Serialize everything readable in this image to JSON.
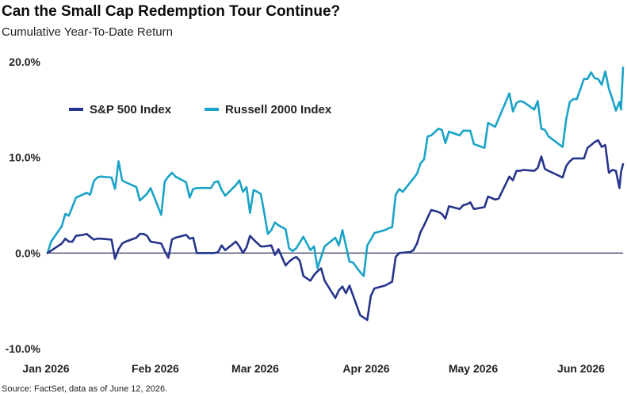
{
  "chart_data": {
    "type": "line",
    "title": "Can the Small Cap Redemption Tour Continue?",
    "subtitle": "Cumulative Year-To-Date Return",
    "source": "Source: FactSet, data as of June 12, 2026.",
    "y_unit": "%",
    "ylim": [
      -10,
      20
    ],
    "y_ticks": [
      {
        "value": -10,
        "label": "-10.0%"
      },
      {
        "value": 0,
        "label": "0.0%"
      },
      {
        "value": 10,
        "label": "10.0%"
      },
      {
        "value": 20,
        "label": "20.0%"
      }
    ],
    "xlim": [
      "2026-01-01",
      "2026-06-12"
    ],
    "x_ticks": [
      {
        "date": "2026-01-01",
        "label": "Jan 2026"
      },
      {
        "date": "2026-02-01",
        "label": "Feb 2026"
      },
      {
        "date": "2026-03-01",
        "label": "Mar 2026"
      },
      {
        "date": "2026-04-01",
        "label": "Apr 2026"
      },
      {
        "date": "2026-05-01",
        "label": "May 2026"
      },
      {
        "date": "2026-06-01",
        "label": "Jun 2026"
      }
    ],
    "zero_line": true,
    "grid": false,
    "legend_position": "top-left",
    "series": [
      {
        "name": "S&P 500 Index",
        "color": "#27348b",
        "points": [
          [
            "2026-01-01",
            0.0
          ],
          [
            "2026-01-03",
            0.5
          ],
          [
            "2026-01-05",
            1.0
          ],
          [
            "2026-01-06",
            1.5
          ],
          [
            "2026-01-07",
            1.2
          ],
          [
            "2026-01-08",
            1.2
          ],
          [
            "2026-01-09",
            1.8
          ],
          [
            "2026-01-11",
            1.9
          ],
          [
            "2026-01-12",
            2.0
          ],
          [
            "2026-01-13",
            1.7
          ],
          [
            "2026-01-14",
            1.4
          ],
          [
            "2026-01-15",
            1.5
          ],
          [
            "2026-01-16",
            1.5
          ],
          [
            "2026-01-19",
            1.4
          ],
          [
            "2026-01-20",
            -0.6
          ],
          [
            "2026-01-21",
            0.4
          ],
          [
            "2026-01-22",
            1.0
          ],
          [
            "2026-01-23",
            1.2
          ],
          [
            "2026-01-26",
            1.6
          ],
          [
            "2026-01-27",
            2.0
          ],
          [
            "2026-01-28",
            2.0
          ],
          [
            "2026-01-29",
            1.8
          ],
          [
            "2026-01-30",
            1.2
          ],
          [
            "2026-02-02",
            1.0
          ],
          [
            "2026-02-03",
            0.2
          ],
          [
            "2026-02-04",
            -0.5
          ],
          [
            "2026-02-05",
            1.4
          ],
          [
            "2026-02-06",
            1.6
          ],
          [
            "2026-02-09",
            1.9
          ],
          [
            "2026-02-10",
            1.5
          ],
          [
            "2026-02-11",
            1.6
          ],
          [
            "2026-02-12",
            0.0
          ],
          [
            "2026-02-17",
            0.0
          ],
          [
            "2026-02-18",
            0.1
          ],
          [
            "2026-02-19",
            0.8
          ],
          [
            "2026-02-20",
            0.3
          ],
          [
            "2026-02-23",
            1.2
          ],
          [
            "2026-02-24",
            0.7
          ],
          [
            "2026-02-25",
            0.0
          ],
          [
            "2026-02-26",
            0.6
          ],
          [
            "2026-02-27",
            1.8
          ],
          [
            "2026-02-28",
            1.4
          ],
          [
            "2026-03-02",
            0.7
          ],
          [
            "2026-03-03",
            0.7
          ],
          [
            "2026-03-05",
            0.8
          ],
          [
            "2026-03-06",
            -0.2
          ],
          [
            "2026-03-07",
            0.4
          ],
          [
            "2026-03-09",
            -1.3
          ],
          [
            "2026-03-10",
            -0.9
          ],
          [
            "2026-03-11",
            -0.6
          ],
          [
            "2026-03-12",
            -0.4
          ],
          [
            "2026-03-13",
            -0.8
          ],
          [
            "2026-03-14",
            -2.4
          ],
          [
            "2026-03-16",
            -2.9
          ],
          [
            "2026-03-17",
            -2.3
          ],
          [
            "2026-03-18",
            -1.9
          ],
          [
            "2026-03-19",
            -1.6
          ],
          [
            "2026-03-20",
            -2.9
          ],
          [
            "2026-03-23",
            -4.7
          ],
          [
            "2026-03-24",
            -3.9
          ],
          [
            "2026-03-25",
            -3.5
          ],
          [
            "2026-03-26",
            -4.2
          ],
          [
            "2026-03-27",
            -3.4
          ],
          [
            "2026-03-30",
            -6.5
          ],
          [
            "2026-04-01",
            -7.0
          ],
          [
            "2026-04-02",
            -4.5
          ],
          [
            "2026-04-03",
            -3.7
          ],
          [
            "2026-04-06",
            -3.4
          ],
          [
            "2026-04-08",
            -3.0
          ],
          [
            "2026-04-09",
            -0.4
          ],
          [
            "2026-04-10",
            0.0
          ],
          [
            "2026-04-13",
            0.1
          ],
          [
            "2026-04-14",
            0.3
          ],
          [
            "2026-04-15",
            1.0
          ],
          [
            "2026-04-16",
            2.2
          ],
          [
            "2026-04-17",
            2.9
          ],
          [
            "2026-04-19",
            4.5
          ],
          [
            "2026-04-21",
            4.3
          ],
          [
            "2026-04-22",
            4.1
          ],
          [
            "2026-04-23",
            3.6
          ],
          [
            "2026-04-24",
            4.9
          ],
          [
            "2026-04-27",
            4.6
          ],
          [
            "2026-04-28",
            5.0
          ],
          [
            "2026-04-29",
            5.1
          ],
          [
            "2026-04-30",
            5.3
          ],
          [
            "2026-05-01",
            4.6
          ],
          [
            "2026-05-04",
            4.8
          ],
          [
            "2026-05-05",
            5.9
          ],
          [
            "2026-05-07",
            5.6
          ],
          [
            "2026-05-08",
            5.7
          ],
          [
            "2026-05-11",
            8.0
          ],
          [
            "2026-05-12",
            7.6
          ],
          [
            "2026-05-13",
            8.6
          ],
          [
            "2026-05-14",
            8.6
          ],
          [
            "2026-05-15",
            8.7
          ],
          [
            "2026-05-18",
            8.6
          ],
          [
            "2026-05-19",
            8.9
          ],
          [
            "2026-05-20",
            10.1
          ],
          [
            "2026-05-21",
            8.8
          ],
          [
            "2026-05-22",
            8.6
          ],
          [
            "2026-05-26",
            7.9
          ],
          [
            "2026-05-27",
            9.1
          ],
          [
            "2026-05-28",
            9.6
          ],
          [
            "2026-05-29",
            9.9
          ],
          [
            "2026-06-01",
            9.9
          ],
          [
            "2026-06-02",
            11.0
          ],
          [
            "2026-06-03",
            11.3
          ],
          [
            "2026-06-04",
            11.6
          ],
          [
            "2026-06-05",
            11.8
          ],
          [
            "2026-06-06",
            11.1
          ],
          [
            "2026-06-07",
            11.3
          ],
          [
            "2026-06-08",
            8.4
          ],
          [
            "2026-06-09",
            8.7
          ],
          [
            "2026-06-10",
            8.6
          ],
          [
            "2026-06-11",
            6.8
          ],
          [
            "2026-06-11",
            8.5
          ],
          [
            "2026-06-12",
            9.3
          ]
        ]
      },
      {
        "name": "Russell 2000 Index",
        "color": "#1aa3c7",
        "points": [
          [
            "2026-01-01",
            0.0
          ],
          [
            "2026-01-02",
            1.2
          ],
          [
            "2026-01-05",
            2.8
          ],
          [
            "2026-01-06",
            4.1
          ],
          [
            "2026-01-07",
            3.9
          ],
          [
            "2026-01-09",
            5.8
          ],
          [
            "2026-01-12",
            6.3
          ],
          [
            "2026-01-13",
            6.1
          ],
          [
            "2026-01-14",
            7.5
          ],
          [
            "2026-01-15",
            7.9
          ],
          [
            "2026-01-16",
            8.0
          ],
          [
            "2026-01-19",
            7.9
          ],
          [
            "2026-01-20",
            6.7
          ],
          [
            "2026-01-21",
            9.6
          ],
          [
            "2026-01-22",
            7.6
          ],
          [
            "2026-01-23",
            7.4
          ],
          [
            "2026-01-26",
            6.9
          ],
          [
            "2026-01-27",
            5.5
          ],
          [
            "2026-01-29",
            6.2
          ],
          [
            "2026-01-30",
            6.8
          ],
          [
            "2026-02-02",
            4.0
          ],
          [
            "2026-02-03",
            7.5
          ],
          [
            "2026-02-04",
            8.0
          ],
          [
            "2026-02-05",
            8.4
          ],
          [
            "2026-02-06",
            8.0
          ],
          [
            "2026-02-09",
            7.4
          ],
          [
            "2026-02-10",
            5.8
          ],
          [
            "2026-02-11",
            6.7
          ],
          [
            "2026-02-12",
            6.8
          ],
          [
            "2026-02-16",
            6.8
          ],
          [
            "2026-02-17",
            7.4
          ],
          [
            "2026-02-18",
            7.5
          ],
          [
            "2026-02-19",
            6.6
          ],
          [
            "2026-02-20",
            6.0
          ],
          [
            "2026-02-23",
            7.1
          ],
          [
            "2026-02-24",
            7.6
          ],
          [
            "2026-02-25",
            6.4
          ],
          [
            "2026-02-26",
            6.9
          ],
          [
            "2026-02-27",
            4.2
          ],
          [
            "2026-02-28",
            6.6
          ],
          [
            "2026-03-02",
            6.2
          ],
          [
            "2026-03-03",
            4.2
          ],
          [
            "2026-03-04",
            2.0
          ],
          [
            "2026-03-05",
            2.4
          ],
          [
            "2026-03-06",
            3.2
          ],
          [
            "2026-03-07",
            2.9
          ],
          [
            "2026-03-09",
            2.5
          ],
          [
            "2026-03-10",
            0.5
          ],
          [
            "2026-03-11",
            0.2
          ],
          [
            "2026-03-12",
            0.5
          ],
          [
            "2026-03-14",
            1.7
          ],
          [
            "2026-03-16",
            0.3
          ],
          [
            "2026-03-17",
            0.7
          ],
          [
            "2026-03-18",
            -1.6
          ],
          [
            "2026-03-19",
            -0.4
          ],
          [
            "2026-03-20",
            0.7
          ],
          [
            "2026-03-23",
            1.6
          ],
          [
            "2026-03-24",
            0.8
          ],
          [
            "2026-03-25",
            2.4
          ],
          [
            "2026-03-27",
            -0.9
          ],
          [
            "2026-03-28",
            -1.0
          ],
          [
            "2026-03-30",
            -2.0
          ],
          [
            "2026-03-31",
            -2.4
          ],
          [
            "2026-04-01",
            0.8
          ],
          [
            "2026-04-02",
            1.4
          ],
          [
            "2026-04-03",
            2.1
          ],
          [
            "2026-04-06",
            2.4
          ],
          [
            "2026-04-07",
            2.6
          ],
          [
            "2026-04-08",
            2.7
          ],
          [
            "2026-04-09",
            6.1
          ],
          [
            "2026-04-10",
            6.7
          ],
          [
            "2026-04-11",
            6.4
          ],
          [
            "2026-04-14",
            7.8
          ],
          [
            "2026-04-15",
            8.3
          ],
          [
            "2026-04-16",
            9.4
          ],
          [
            "2026-04-17",
            9.8
          ],
          [
            "2026-04-18",
            12.2
          ],
          [
            "2026-04-19",
            12.3
          ],
          [
            "2026-04-21",
            13.0
          ],
          [
            "2026-04-22",
            12.9
          ],
          [
            "2026-04-23",
            11.5
          ],
          [
            "2026-04-24",
            12.7
          ],
          [
            "2026-04-27",
            12.3
          ],
          [
            "2026-04-28",
            12.8
          ],
          [
            "2026-04-29",
            12.8
          ],
          [
            "2026-04-30",
            12.8
          ],
          [
            "2026-05-01",
            11.4
          ],
          [
            "2026-05-04",
            11.0
          ],
          [
            "2026-05-05",
            13.6
          ],
          [
            "2026-05-06",
            13.4
          ],
          [
            "2026-05-07",
            13.2
          ],
          [
            "2026-05-11",
            16.7
          ],
          [
            "2026-05-12",
            14.8
          ],
          [
            "2026-05-13",
            15.7
          ],
          [
            "2026-05-14",
            15.9
          ],
          [
            "2026-05-15",
            15.8
          ],
          [
            "2026-05-18",
            15.0
          ],
          [
            "2026-05-19",
            15.9
          ],
          [
            "2026-05-20",
            13.0
          ],
          [
            "2026-05-21",
            12.9
          ],
          [
            "2026-05-22",
            12.2
          ],
          [
            "2026-05-26",
            11.1
          ],
          [
            "2026-05-27",
            14.0
          ],
          [
            "2026-05-28",
            15.8
          ],
          [
            "2026-05-29",
            16.1
          ],
          [
            "2026-05-30",
            16.1
          ],
          [
            "2026-06-01",
            18.2
          ],
          [
            "2026-06-02",
            18.2
          ],
          [
            "2026-06-03",
            18.9
          ],
          [
            "2026-06-04",
            18.3
          ],
          [
            "2026-06-05",
            18.2
          ],
          [
            "2026-06-06",
            17.6
          ],
          [
            "2026-06-07",
            19.0
          ],
          [
            "2026-06-08",
            17.2
          ],
          [
            "2026-06-09",
            16.1
          ],
          [
            "2026-06-10",
            14.9
          ],
          [
            "2026-06-11",
            15.8
          ],
          [
            "2026-06-11",
            15.0
          ],
          [
            "2026-06-12",
            19.4
          ]
        ]
      }
    ]
  }
}
